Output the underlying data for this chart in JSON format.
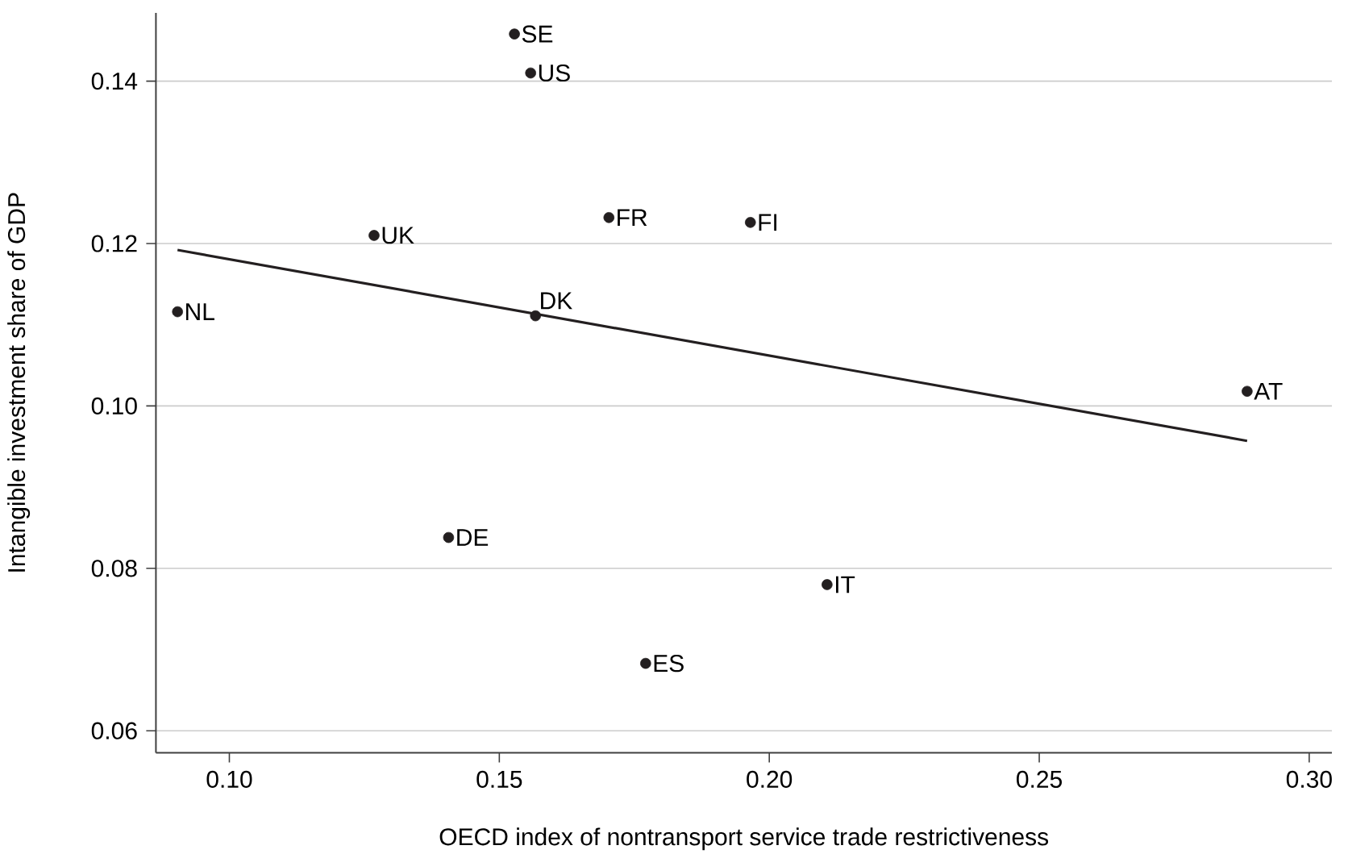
{
  "chart_data": {
    "type": "scatter",
    "xlabel": "OECD index of nontransport service trade restrictiveness",
    "ylabel": "Intangible investment share of GDP",
    "xlim": [
      0.0864,
      0.3042
    ],
    "ylim": [
      0.0573,
      0.1484
    ],
    "xticks": [
      {
        "value": 0.1,
        "label": "0.10"
      },
      {
        "value": 0.15,
        "label": "0.15"
      },
      {
        "value": 0.2,
        "label": "0.20"
      },
      {
        "value": 0.25,
        "label": "0.25"
      },
      {
        "value": 0.3,
        "label": "0.30"
      }
    ],
    "yticks": [
      {
        "value": 0.06,
        "label": "0.06"
      },
      {
        "value": 0.08,
        "label": "0.08"
      },
      {
        "value": 0.1,
        "label": "0.10"
      },
      {
        "value": 0.12,
        "label": "0.12"
      },
      {
        "value": 0.14,
        "label": "0.14"
      }
    ],
    "grid": "y",
    "series": [
      {
        "marker": "circle",
        "color": "#231f20",
        "x": [
          0.1528,
          0.1558,
          0.1703,
          0.1268,
          0.0904,
          0.1567,
          0.1406,
          0.1771,
          0.1965,
          0.2107,
          0.2885
        ],
        "values": [
          0.1458,
          0.141,
          0.1232,
          0.121,
          0.1116,
          0.1111,
          0.0838,
          0.0683,
          0.1226,
          0.078,
          0.1018
        ]
      },
      {
        "type": "line",
        "color": "#231f20",
        "x": [
          0.0904,
          0.2885
        ],
        "values": [
          0.1192,
          0.0957
        ]
      }
    ],
    "annotations": [
      {
        "text": "SE",
        "x": 0.1528,
        "y": 0.1458
      },
      {
        "text": "US",
        "x": 0.1558,
        "y": 0.141
      },
      {
        "text": "FR",
        "x": 0.1703,
        "y": 0.1232
      },
      {
        "text": "UK",
        "x": 0.1268,
        "y": 0.121
      },
      {
        "text": "NL",
        "x": 0.0904,
        "y": 0.1116
      },
      {
        "text": "DK",
        "x": 0.1567,
        "y": 0.1111
      },
      {
        "text": "DE",
        "x": 0.1406,
        "y": 0.0838
      },
      {
        "text": "ES",
        "x": 0.1771,
        "y": 0.0683
      },
      {
        "text": "FI",
        "x": 0.1965,
        "y": 0.1226
      },
      {
        "text": "IT",
        "x": 0.2107,
        "y": 0.078
      },
      {
        "text": "AT",
        "x": 0.2885,
        "y": 0.1018
      }
    ]
  }
}
